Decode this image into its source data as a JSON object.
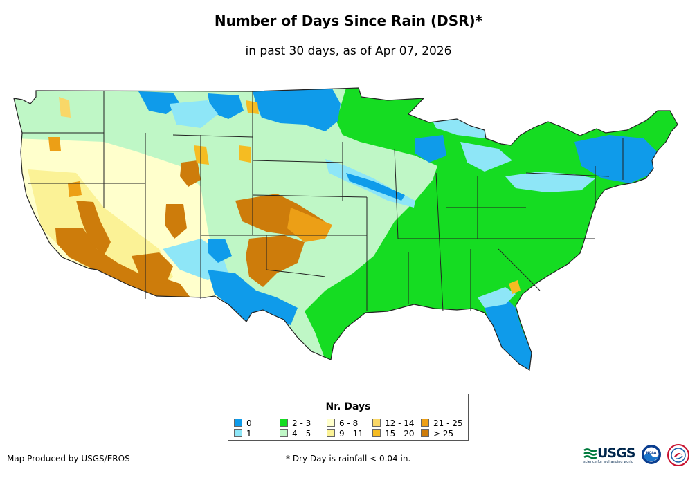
{
  "map": {
    "title": "Number of Days Since Rain (DSR)*",
    "subtitle": "in past 30 days, as of Apr 07, 2026",
    "region": "Contiguous United States"
  },
  "legend": {
    "title": "Nr. Days",
    "items": [
      {
        "label": "0",
        "color": "#0f9bea"
      },
      {
        "label": "1",
        "color": "#8ee6f7"
      },
      {
        "label": "2 - 3",
        "color": "#15dc22"
      },
      {
        "label": "4 - 5",
        "color": "#bff7c6"
      },
      {
        "label": "6 - 8",
        "color": "#ffffcc"
      },
      {
        "label": "9 - 11",
        "color": "#fbf296"
      },
      {
        "label": "12 - 14",
        "color": "#f9d768"
      },
      {
        "label": "15 - 20",
        "color": "#f5bc22"
      },
      {
        "label": "21 - 25",
        "color": "#ec9f16"
      },
      {
        "label": "> 25",
        "color": "#cd7c0b"
      }
    ]
  },
  "footer": {
    "credit": "Map Produced by USGS/EROS",
    "footnote": "* Dry Day is rainfall < 0.04 in.",
    "usgs_logo_text": "USGS",
    "usgs_tagline": "science for a changing world",
    "noaa_logo_text": "NOAA"
  },
  "colors": {
    "state_border": "#222222",
    "usgs_green": "#007a3d",
    "usgs_blue": "#00264c"
  }
}
